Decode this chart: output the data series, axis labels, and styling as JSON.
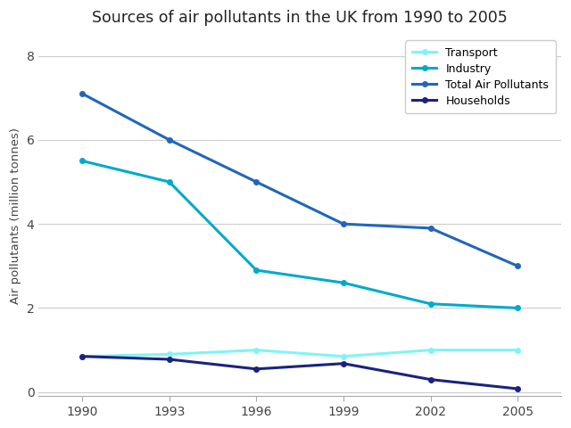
{
  "title": "Sources of air pollutants in the UK from 1990 to 2005",
  "xlabel": "",
  "ylabel": "Air pollutants (million tonnes)",
  "years": [
    1990,
    1993,
    1996,
    1999,
    2002,
    2005
  ],
  "series": {
    "Transport": {
      "values": [
        0.85,
        0.9,
        1.0,
        0.85,
        1.0,
        1.0
      ],
      "color": "#7ef5f5",
      "linewidth": 2.2
    },
    "Industry": {
      "values": [
        5.5,
        5.0,
        2.9,
        2.6,
        2.1,
        2.0
      ],
      "color": "#00aacc",
      "linewidth": 2.2
    },
    "Total Air Pollutants": {
      "values": [
        7.1,
        6.0,
        5.0,
        4.0,
        3.9,
        3.0
      ],
      "color": "#2266bb",
      "linewidth": 2.2
    },
    "Households": {
      "values": [
        0.85,
        0.78,
        0.55,
        0.68,
        0.3,
        0.08
      ],
      "color": "#1a237e",
      "linewidth": 2.2
    }
  },
  "ylim": [
    -0.1,
    8.5
  ],
  "yticks": [
    0,
    2,
    4,
    6,
    8
  ],
  "background_color": "#ffffff",
  "grid_color": "#cccccc",
  "legend_order": [
    "Transport",
    "Industry",
    "Total Air Pollutants",
    "Households"
  ]
}
